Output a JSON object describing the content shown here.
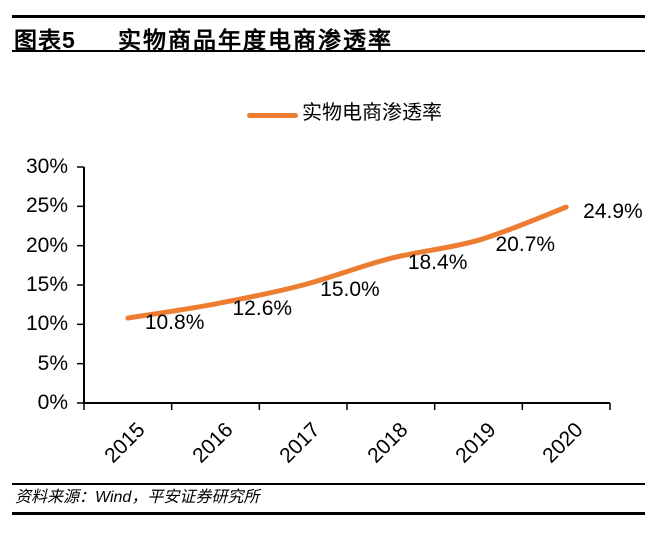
{
  "header": {
    "figure_label": "图表5",
    "title": "实物商品年度电商渗透率"
  },
  "legend": {
    "label": "实物电商渗透率"
  },
  "chart_data": {
    "type": "line",
    "title": "实物商品年度电商渗透率",
    "categories": [
      "2015",
      "2016",
      "2017",
      "2018",
      "2019",
      "2020"
    ],
    "series": [
      {
        "name": "实物电商渗透率",
        "values": [
          10.8,
          12.6,
          15.0,
          18.4,
          20.7,
          24.9
        ]
      }
    ],
    "data_labels": [
      "10.8%",
      "12.6%",
      "15.0%",
      "18.4%",
      "20.7%",
      "24.9%"
    ],
    "xlabel": "",
    "ylabel": "",
    "ylim": [
      0,
      30
    ],
    "y_tick_step": 5,
    "y_tick_labels": [
      "30%",
      "25%",
      "20%",
      "15%",
      "10%",
      "5%",
      "0%"
    ],
    "grid": false,
    "legend_position": "top",
    "line_color": "#ED7D31",
    "axis_color": "#000000",
    "text_color": "#000000"
  },
  "footer": {
    "source": "资料来源：Wind，平安证券研究所"
  }
}
